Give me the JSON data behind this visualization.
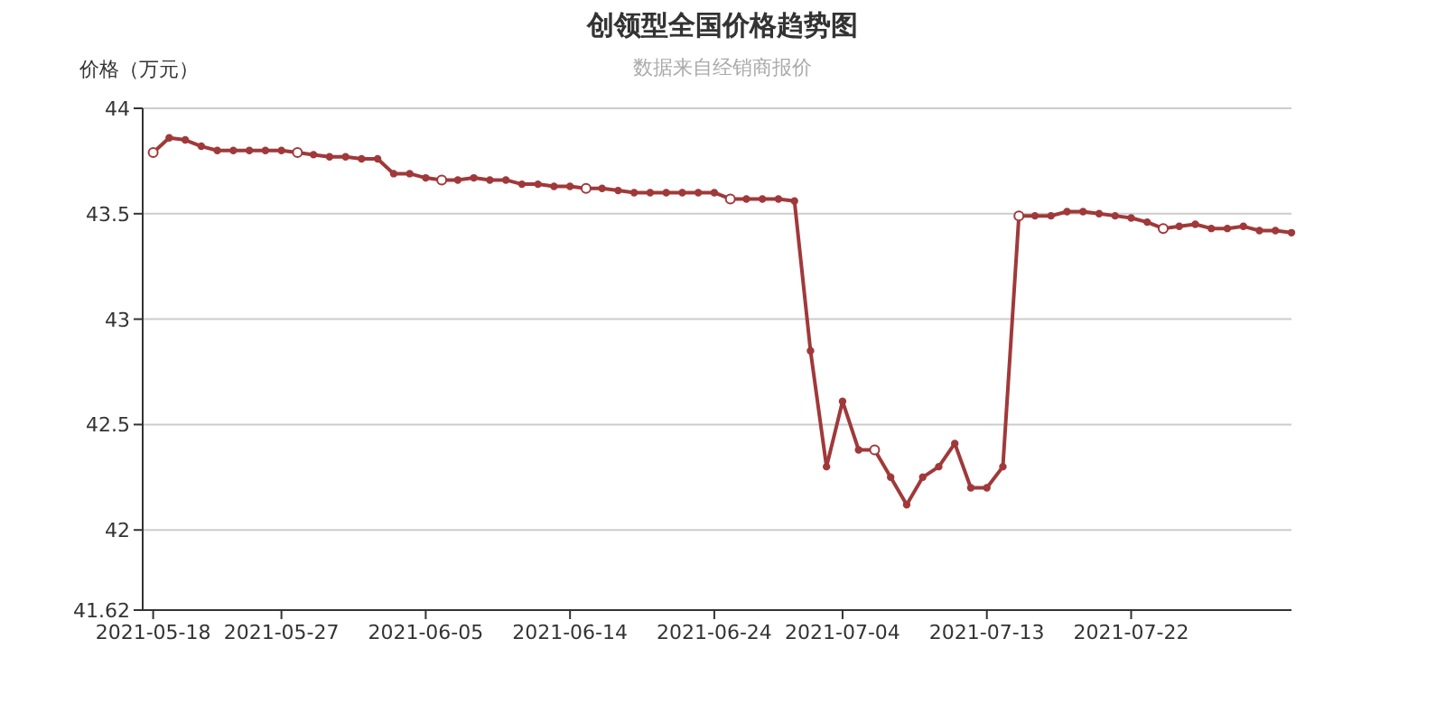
{
  "chart_data": {
    "type": "line",
    "title": "创领型全国价格趋势图",
    "subtitle": "数据来自经销商报价",
    "ylabel": "价格（万元）",
    "categories": [
      "2021-05-18",
      null,
      null,
      null,
      null,
      null,
      null,
      null,
      "2021-05-27",
      null,
      null,
      null,
      null,
      null,
      null,
      null,
      null,
      "2021-06-05",
      null,
      null,
      null,
      null,
      null,
      null,
      null,
      null,
      "2021-06-14",
      null,
      null,
      null,
      null,
      null,
      null,
      null,
      null,
      "2021-06-24",
      null,
      null,
      null,
      null,
      null,
      null,
      null,
      "2021-07-04",
      null,
      null,
      null,
      null,
      null,
      null,
      null,
      null,
      "2021-07-13",
      null,
      null,
      null,
      null,
      null,
      null,
      null,
      null,
      "2021-07-22",
      null,
      null,
      null,
      null,
      null,
      null,
      null,
      null,
      null,
      null
    ],
    "series": [
      {
        "color": "#a0393a",
        "values": [
          43.79,
          43.86,
          43.85,
          43.82,
          43.8,
          43.8,
          43.8,
          43.8,
          43.8,
          43.79,
          43.78,
          43.77,
          43.77,
          43.76,
          43.76,
          43.69,
          43.69,
          43.67,
          43.66,
          43.66,
          43.67,
          43.66,
          43.66,
          43.64,
          43.64,
          43.63,
          43.63,
          43.62,
          43.62,
          43.61,
          43.6,
          43.6,
          43.6,
          43.6,
          43.6,
          43.6,
          43.57,
          43.57,
          43.57,
          43.57,
          43.56,
          42.85,
          42.3,
          42.61,
          42.38,
          42.38,
          42.25,
          42.12,
          42.25,
          42.3,
          42.41,
          42.2,
          42.2,
          42.3,
          43.49,
          43.49,
          43.49,
          43.51,
          43.51,
          43.5,
          43.49,
          43.48,
          43.46,
          43.43,
          43.44,
          43.45,
          43.43,
          43.43,
          43.44,
          43.42,
          43.42,
          43.41
        ]
      }
    ],
    "ylim": [
      41.62,
      44
    ],
    "yticks": [
      41.62,
      42,
      42.5,
      43,
      43.5,
      44
    ],
    "grid": "y",
    "marker": "circle",
    "line_style": "solid"
  }
}
